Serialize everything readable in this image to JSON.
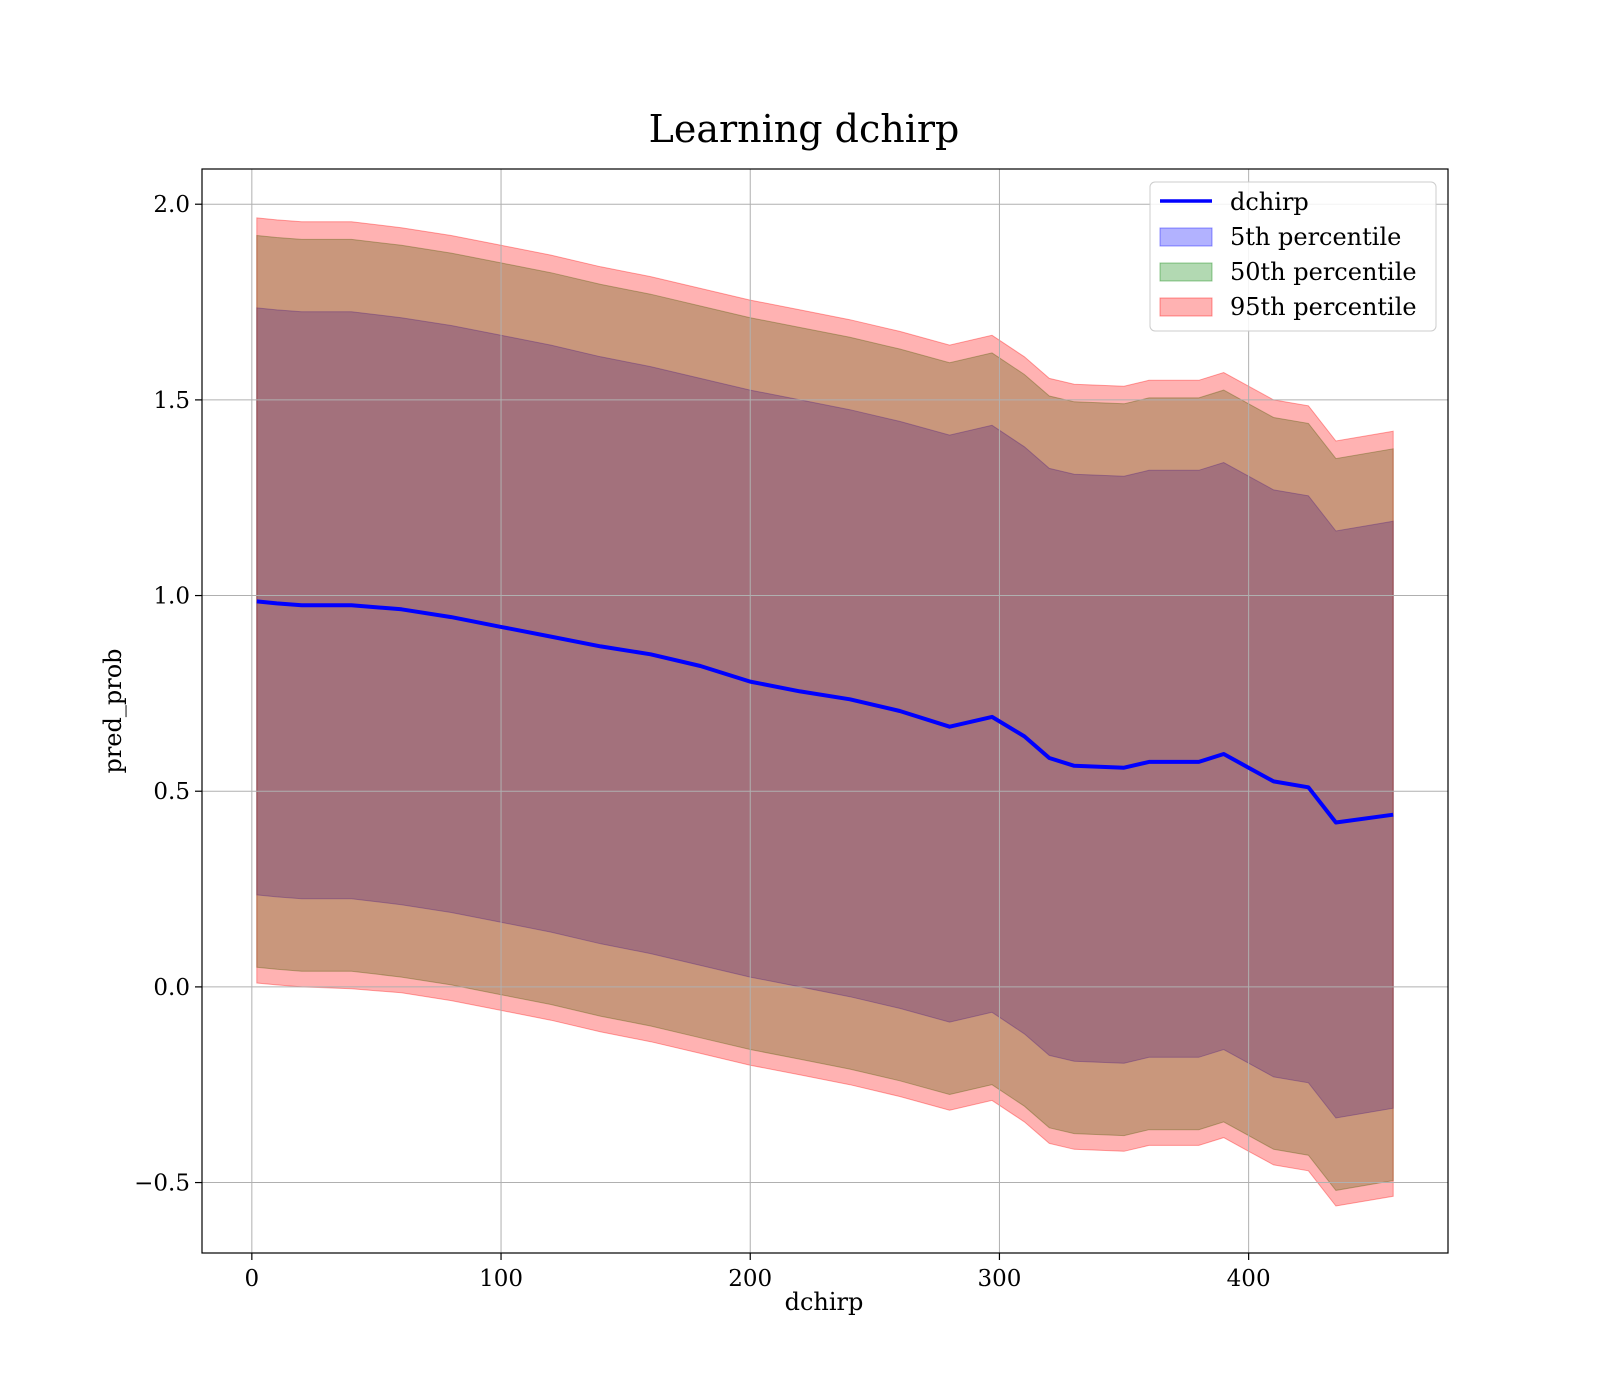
{
  "chart_data": {
    "type": "area",
    "title": "Learning dchirp",
    "xlabel": "dchirp",
    "ylabel": "pred_prob",
    "xlim": [
      -20,
      480
    ],
    "ylim": [
      -0.68,
      2.09
    ],
    "xticks": [
      0,
      100,
      200,
      300,
      400
    ],
    "yticks": [
      -0.5,
      0.0,
      0.5,
      1.0,
      1.5,
      2.0
    ],
    "xtick_labels": [
      "0",
      "100",
      "200",
      "300",
      "400"
    ],
    "ytick_labels": [
      "−0.5",
      "0.0",
      "0.5",
      "1.0",
      "1.5",
      "2.0"
    ],
    "grid": true,
    "legend_position": "upper-right",
    "x": [
      2,
      10,
      20,
      40,
      60,
      80,
      100,
      120,
      140,
      160,
      180,
      200,
      220,
      240,
      260,
      280,
      297,
      310,
      320,
      330,
      350,
      360,
      380,
      390,
      400,
      410,
      424,
      435,
      458
    ],
    "series": [
      {
        "name": "dchirp",
        "kind": "line",
        "color": "#0000ff",
        "values": [
          0.985,
          0.98,
          0.975,
          0.975,
          0.965,
          0.945,
          0.92,
          0.895,
          0.87,
          0.85,
          0.82,
          0.78,
          0.755,
          0.735,
          0.705,
          0.665,
          0.69,
          0.64,
          0.585,
          0.565,
          0.56,
          0.575,
          0.575,
          0.595,
          0.56,
          0.525,
          0.51,
          0.42,
          0.44
        ]
      },
      {
        "name": "5th percentile",
        "kind": "band",
        "color": "#0000ff",
        "lower": [
          0.235,
          0.23,
          0.225,
          0.225,
          0.21,
          0.19,
          0.165,
          0.14,
          0.11,
          0.085,
          0.055,
          0.025,
          0.0,
          -0.025,
          -0.055,
          -0.09,
          -0.065,
          -0.12,
          -0.175,
          -0.19,
          -0.195,
          -0.18,
          -0.18,
          -0.16,
          -0.195,
          -0.23,
          -0.245,
          -0.335,
          -0.31
        ],
        "upper": [
          1.735,
          1.73,
          1.725,
          1.725,
          1.71,
          1.69,
          1.665,
          1.64,
          1.61,
          1.585,
          1.555,
          1.525,
          1.5,
          1.475,
          1.445,
          1.41,
          1.435,
          1.38,
          1.325,
          1.31,
          1.305,
          1.32,
          1.32,
          1.34,
          1.305,
          1.27,
          1.255,
          1.165,
          1.19
        ]
      },
      {
        "name": "50th percentile",
        "kind": "band",
        "color": "#008000",
        "lower": [
          0.05,
          0.045,
          0.04,
          0.04,
          0.025,
          0.005,
          -0.02,
          -0.045,
          -0.075,
          -0.1,
          -0.13,
          -0.16,
          -0.185,
          -0.21,
          -0.24,
          -0.275,
          -0.25,
          -0.305,
          -0.36,
          -0.375,
          -0.38,
          -0.365,
          -0.365,
          -0.345,
          -0.38,
          -0.415,
          -0.43,
          -0.52,
          -0.495
        ],
        "upper": [
          1.92,
          1.915,
          1.91,
          1.91,
          1.895,
          1.875,
          1.85,
          1.825,
          1.795,
          1.77,
          1.74,
          1.71,
          1.685,
          1.66,
          1.63,
          1.595,
          1.62,
          1.565,
          1.51,
          1.495,
          1.49,
          1.505,
          1.505,
          1.525,
          1.49,
          1.455,
          1.44,
          1.35,
          1.375
        ]
      },
      {
        "name": "95th percentile",
        "kind": "band",
        "color": "#ff0000",
        "lower": [
          0.01,
          0.005,
          0.0,
          -0.005,
          -0.015,
          -0.035,
          -0.06,
          -0.085,
          -0.115,
          -0.14,
          -0.17,
          -0.2,
          -0.225,
          -0.25,
          -0.28,
          -0.315,
          -0.29,
          -0.345,
          -0.4,
          -0.415,
          -0.42,
          -0.405,
          -0.405,
          -0.385,
          -0.42,
          -0.455,
          -0.47,
          -0.56,
          -0.535
        ],
        "upper": [
          1.965,
          1.96,
          1.955,
          1.955,
          1.94,
          1.92,
          1.895,
          1.87,
          1.84,
          1.815,
          1.785,
          1.755,
          1.73,
          1.705,
          1.675,
          1.64,
          1.665,
          1.61,
          1.555,
          1.54,
          1.535,
          1.55,
          1.55,
          1.57,
          1.535,
          1.5,
          1.485,
          1.395,
          1.42
        ]
      }
    ]
  }
}
